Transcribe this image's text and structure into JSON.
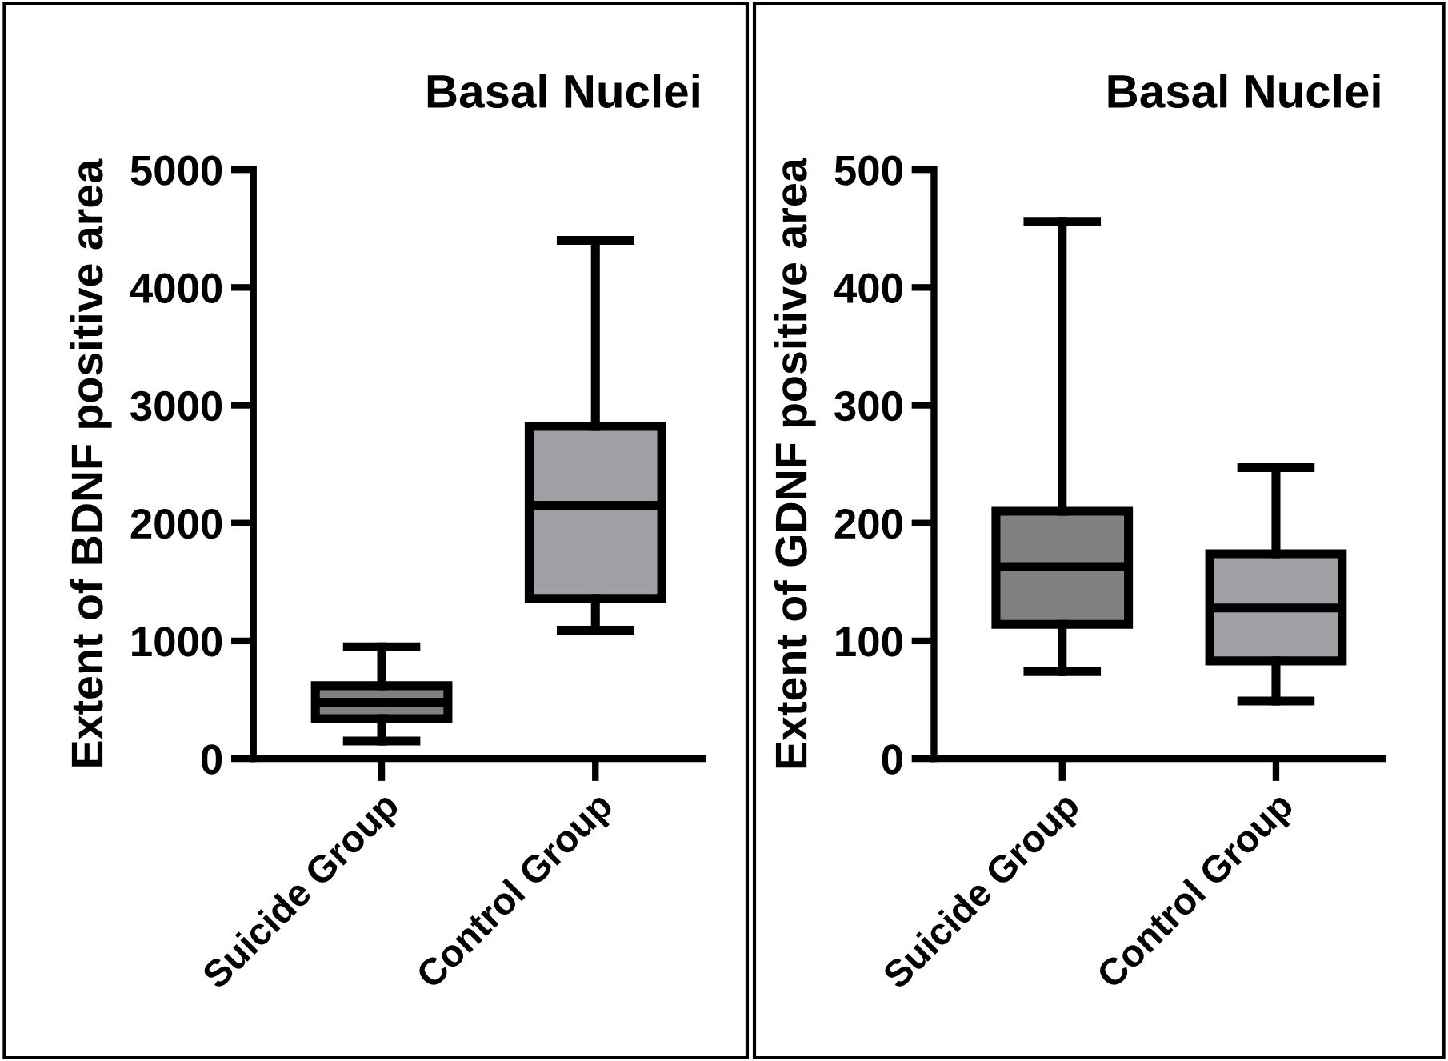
{
  "chart_data": [
    {
      "type": "box",
      "title": "Basal Nuclei",
      "ylabel": "Extent of BDNF positive area",
      "categories": [
        "Suicide Group",
        "Control Group"
      ],
      "colors": [
        "#808080",
        "#a0a0a4"
      ],
      "ylim": [
        0,
        5000
      ],
      "yticks": [
        0,
        1000,
        2000,
        3000,
        4000,
        5000
      ],
      "grid": false,
      "boxes": [
        {
          "low": 150,
          "q1": 340,
          "median": 480,
          "q3": 620,
          "high": 950
        },
        {
          "low": 1090,
          "q1": 1360,
          "median": 2150,
          "q3": 2820,
          "high": 4400
        }
      ]
    },
    {
      "type": "box",
      "title": "Basal Nuclei",
      "ylabel": "Extent of GDNF positive area",
      "categories": [
        "Suicide Group",
        "Control Group"
      ],
      "colors": [
        "#808080",
        "#a0a0a4"
      ],
      "ylim": [
        0,
        500
      ],
      "yticks": [
        0,
        100,
        200,
        300,
        400,
        500
      ],
      "grid": false,
      "boxes": [
        {
          "low": 74,
          "q1": 114,
          "median": 163,
          "q3": 210,
          "high": 456
        },
        {
          "low": 49,
          "q1": 83,
          "median": 128,
          "q3": 174,
          "high": 247
        }
      ]
    }
  ]
}
